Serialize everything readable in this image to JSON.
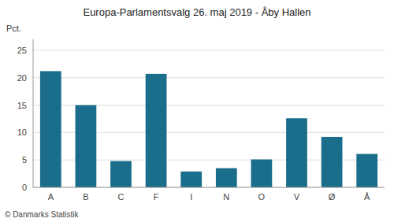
{
  "chart_data": {
    "type": "bar",
    "title": "Europa-Parlamentsvalg 26. maj 2019 - Åby Hallen",
    "categories": [
      "A",
      "B",
      "C",
      "F",
      "I",
      "N",
      "O",
      "V",
      "Ø",
      "Å"
    ],
    "values": [
      21.2,
      15.0,
      4.8,
      20.7,
      2.9,
      3.5,
      5.1,
      12.6,
      9.2,
      6.1
    ],
    "color": "#1b6d8c",
    "ylabel": "Pct.",
    "ylim": [
      0,
      27
    ],
    "yticks": [
      0,
      5,
      10,
      15,
      20,
      25
    ],
    "grid": true,
    "footer": "© Danmarks Statistik"
  }
}
